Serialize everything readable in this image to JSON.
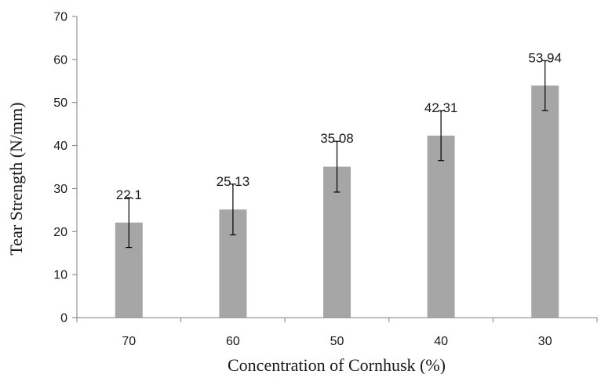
{
  "chart_data": {
    "type": "bar",
    "title": "",
    "xlabel": "Concentration of Cornhusk (%)",
    "ylabel": "Tear Strength (N/mm)",
    "categories": [
      "70",
      "60",
      "50",
      "40",
      "30"
    ],
    "values": [
      22.1,
      25.13,
      35.08,
      42.31,
      53.94
    ],
    "data_labels": [
      "22.1",
      "25.13",
      "35.08",
      "42.31",
      "53.94"
    ],
    "error_bars": [
      5.8,
      5.9,
      5.9,
      5.8,
      5.8
    ],
    "ylim": [
      0,
      70
    ],
    "yticks": [
      "0",
      "10",
      "20",
      "30",
      "40",
      "50",
      "60",
      "70"
    ],
    "grid": false,
    "legend": "none",
    "colors": {
      "bar": "#a6a6a6",
      "axis": "#7f7f7f",
      "error_bar": "#000000"
    }
  }
}
